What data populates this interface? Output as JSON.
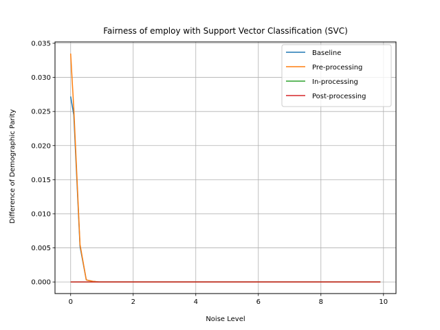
{
  "chart_data": {
    "type": "line",
    "title": "Fairness of employ with Support Vector Classification (SVC)",
    "xlabel": "Noise Level",
    "ylabel": "Difference of Demographic Parity",
    "xlim": [
      -0.5,
      10.4
    ],
    "ylim": [
      -0.0017,
      0.0352
    ],
    "xticks": [
      0,
      2,
      4,
      6,
      8,
      10
    ],
    "xtick_labels": [
      "0",
      "2",
      "4",
      "6",
      "8",
      "10"
    ],
    "yticks": [
      0.0,
      0.005,
      0.01,
      0.015,
      0.02,
      0.025,
      0.03,
      0.035
    ],
    "ytick_labels": [
      "0.000",
      "0.005",
      "0.010",
      "0.015",
      "0.020",
      "0.025",
      "0.030",
      "0.035"
    ],
    "grid": true,
    "legend_position": "top-right",
    "x": [
      0.0,
      0.1,
      0.3,
      0.5,
      0.7,
      0.9,
      1.5,
      2.0,
      3.0,
      4.0,
      5.0,
      6.0,
      7.0,
      8.0,
      9.0,
      9.9
    ],
    "series": [
      {
        "name": "Baseline",
        "color": "#1f77b4",
        "values": [
          0.0272,
          0.0245,
          0.0052,
          0.0003,
          0.0001,
          0.0,
          0.0,
          0.0,
          0.0,
          0.0,
          0.0,
          0.0,
          0.0,
          0.0,
          0.0,
          0.0
        ]
      },
      {
        "name": "Pre-processing",
        "color": "#ff7f0e",
        "values": [
          0.0335,
          0.0255,
          0.0055,
          0.0003,
          0.0001,
          0.0,
          0.0,
          0.0,
          0.0,
          0.0,
          0.0,
          0.0,
          0.0,
          0.0,
          0.0,
          0.0
        ]
      },
      {
        "name": "In-processing",
        "color": "#2ca02c",
        "values": [
          0.0,
          0.0,
          0.0,
          0.0,
          0.0,
          0.0,
          0.0,
          0.0,
          0.0,
          0.0,
          0.0,
          0.0,
          0.0,
          0.0,
          0.0,
          0.0
        ]
      },
      {
        "name": "Post-processing",
        "color": "#d62728",
        "values": [
          0.0,
          0.0,
          0.0,
          0.0,
          0.0,
          0.0,
          0.0,
          0.0,
          0.0,
          0.0,
          0.0,
          0.0,
          0.0,
          0.0,
          0.0,
          0.0
        ]
      }
    ]
  }
}
